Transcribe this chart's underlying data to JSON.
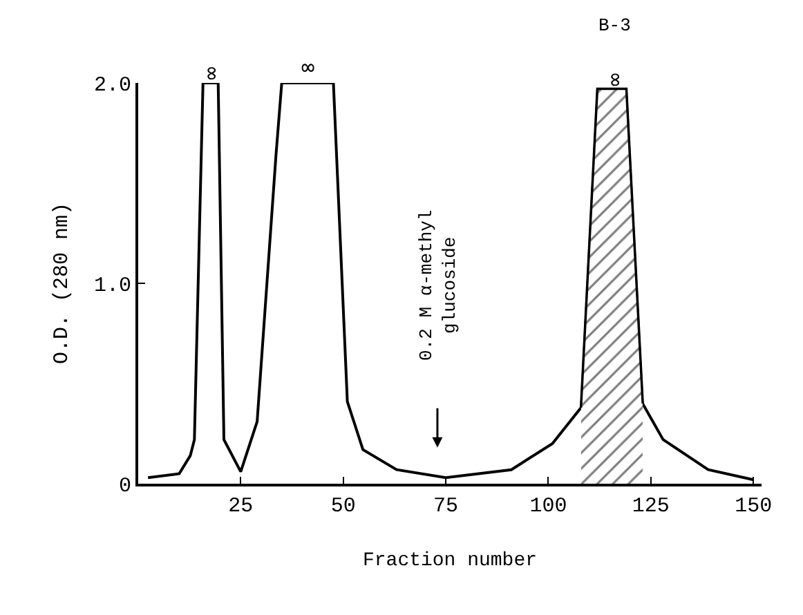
{
  "chart_data": {
    "type": "line",
    "xlabel": "Fraction number",
    "ylabel": "O.D. (280 nm)",
    "x": [
      2.4,
      10,
      12.7,
      13.7,
      15.8,
      19.5,
      20.9,
      25,
      29,
      33.6,
      35,
      47.6,
      51,
      54.8,
      63,
      75,
      91,
      101,
      108,
      112,
      119,
      123,
      128,
      139,
      150
    ],
    "series": [
      {
        "color": "#000000",
        "values": [
          0.03,
          0.05,
          0.14,
          0.22,
          2.0,
          2.0,
          0.22,
          0.06,
          0.31,
          1.64,
          2.0,
          2.0,
          0.41,
          0.17,
          0.07,
          0.03,
          0.07,
          0.2,
          0.38,
          1.97,
          1.97,
          0.4,
          0.22,
          0.07,
          0.02
        ]
      },
      {
        "type": "area",
        "color": "#000000",
        "x": [
          108,
          112,
          119,
          123
        ],
        "values": [
          0.38,
          1.97,
          1.97,
          0.4
        ]
      }
    ],
    "xlim": [
      0,
      152
    ],
    "xticks": [
      25,
      50,
      75,
      100,
      125,
      150
    ],
    "ylim": [
      0,
      2.0
    ],
    "yticks": [
      {
        "value": 0,
        "label": "0"
      },
      {
        "value": 1,
        "label": "1.0"
      },
      {
        "value": 2,
        "label": "2.0"
      }
    ],
    "annotations": [
      "0.2 M α-methyl\nglucoside",
      {
        "text": "∞",
        "x": 17.5,
        "y": 2.0
      },
      {
        "text": "∞",
        "x": 41.5,
        "y": 2.0
      },
      {
        "text": "∞",
        "x": 116,
        "y": 1.97
      },
      {
        "text": "B-3",
        "x": 116,
        "y": 1.97
      }
    ],
    "marker": "none",
    "line_style": "solid"
  }
}
